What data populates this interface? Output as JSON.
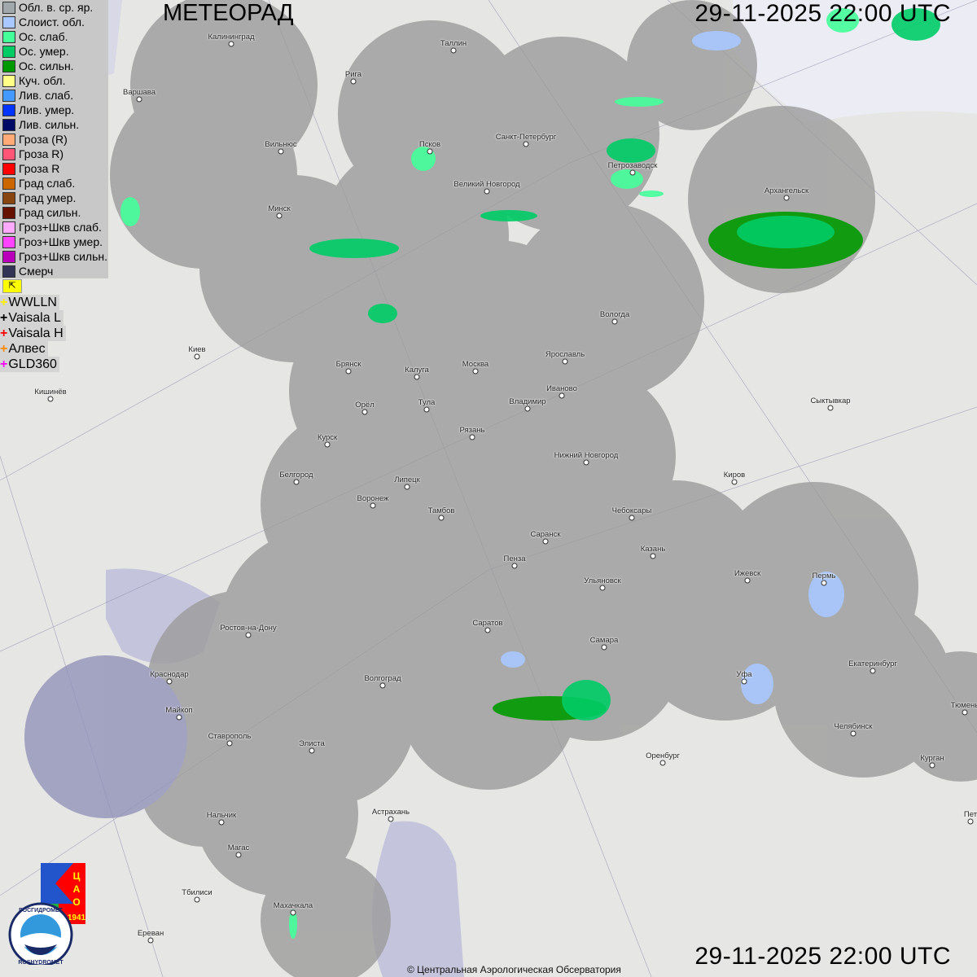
{
  "header": {
    "title": "МЕТЕОРАД",
    "datetime_top": "29-11-2025  22:00 UTC",
    "datetime_bottom": "29-11-2025  22:00 UTC"
  },
  "legend": {
    "items": [
      {
        "label": "Обл. в. ср. яр.",
        "color": "#a0a8ac"
      },
      {
        "label": "Слоист. обл.",
        "color": "#a8c8ff"
      },
      {
        "label": "Ос. слаб.",
        "color": "#44ff99"
      },
      {
        "label": "Ос. умер.",
        "color": "#00cc66"
      },
      {
        "label": "Ос. сильн.",
        "color": "#009900"
      },
      {
        "label": "Куч. обл.",
        "color": "#ffff88"
      },
      {
        "label": "Лив. слаб.",
        "color": "#4499ff"
      },
      {
        "label": "Лив. умер.",
        "color": "#0033ff"
      },
      {
        "label": "Лив. сильн.",
        "color": "#000a66"
      },
      {
        "label": "Гроза (R)",
        "color": "#ffaa77"
      },
      {
        "label": "Гроза R)",
        "color": "#ff5577"
      },
      {
        "label": "Гроза R",
        "color": "#ff0000"
      },
      {
        "label": "Град слаб.",
        "color": "#cc6600"
      },
      {
        "label": "Град умер.",
        "color": "#884411"
      },
      {
        "label": "Град сильн.",
        "color": "#661100"
      },
      {
        "label": "Гроз+Шкв слаб.",
        "color": "#ffaaff"
      },
      {
        "label": "Гроз+Шкв умер.",
        "color": "#ff44ff"
      },
      {
        "label": "Гроз+Шкв сильн.",
        "color": "#bb00bb"
      },
      {
        "label": "Смерч",
        "color": "#333355"
      }
    ],
    "flag_icon": "cursor-arrow-icon",
    "lightning": [
      {
        "label": "WWLLN",
        "color": "#ffee00"
      },
      {
        "label": "Vaisala L",
        "color": "#000000"
      },
      {
        "label": "Vaisala H",
        "color": "#ff0000"
      },
      {
        "label": "Алвес",
        "color": "#ff8800"
      },
      {
        "label": "GLD360",
        "color": "#ff00ff"
      }
    ]
  },
  "cities": [
    "Калининград",
    "Таллин",
    "Рига",
    "Варшава",
    "Санкт-Петербург",
    "Псков",
    "Вильнюс",
    "Петрозаводск",
    "Великий Новгород",
    "Архангельск",
    "Минск",
    "Вологда",
    "Киев",
    "Ярославль",
    "Брянск",
    "Калуга",
    "Москва",
    "Иваново",
    "Кишинёв",
    "Орёл",
    "Тула",
    "Владимир",
    "Сыктывкар",
    "Рязань",
    "Курск",
    "Нижний Новгород",
    "Белгород",
    "Киров",
    "Липецк",
    "Воронеж",
    "Тамбов",
    "Чебоксары",
    "Саранск",
    "Казань",
    "Пенза",
    "Ижевск",
    "Ульяновск",
    "Пермь",
    "Ростов-на-Дону",
    "Саратов",
    "Самара",
    "Екатеринбург",
    "Краснодар",
    "Волгоград",
    "Уфа",
    "Тюмень",
    "Майкоп",
    "Челябинск",
    "Ставрополь",
    "Элиста",
    "Оренбург",
    "Курган",
    "Астрахань",
    "Нальчик",
    "Пет",
    "Магас",
    "Тбилиси",
    "Махачкала",
    "Ереван"
  ],
  "logos": {
    "tsao": "ЦАО 1941",
    "roshydromet": "РОСГИДРОМЕТ ROSHYDROMET"
  },
  "footer": {
    "copyright": "© Центральная Аэрологическая Обсерватория"
  }
}
